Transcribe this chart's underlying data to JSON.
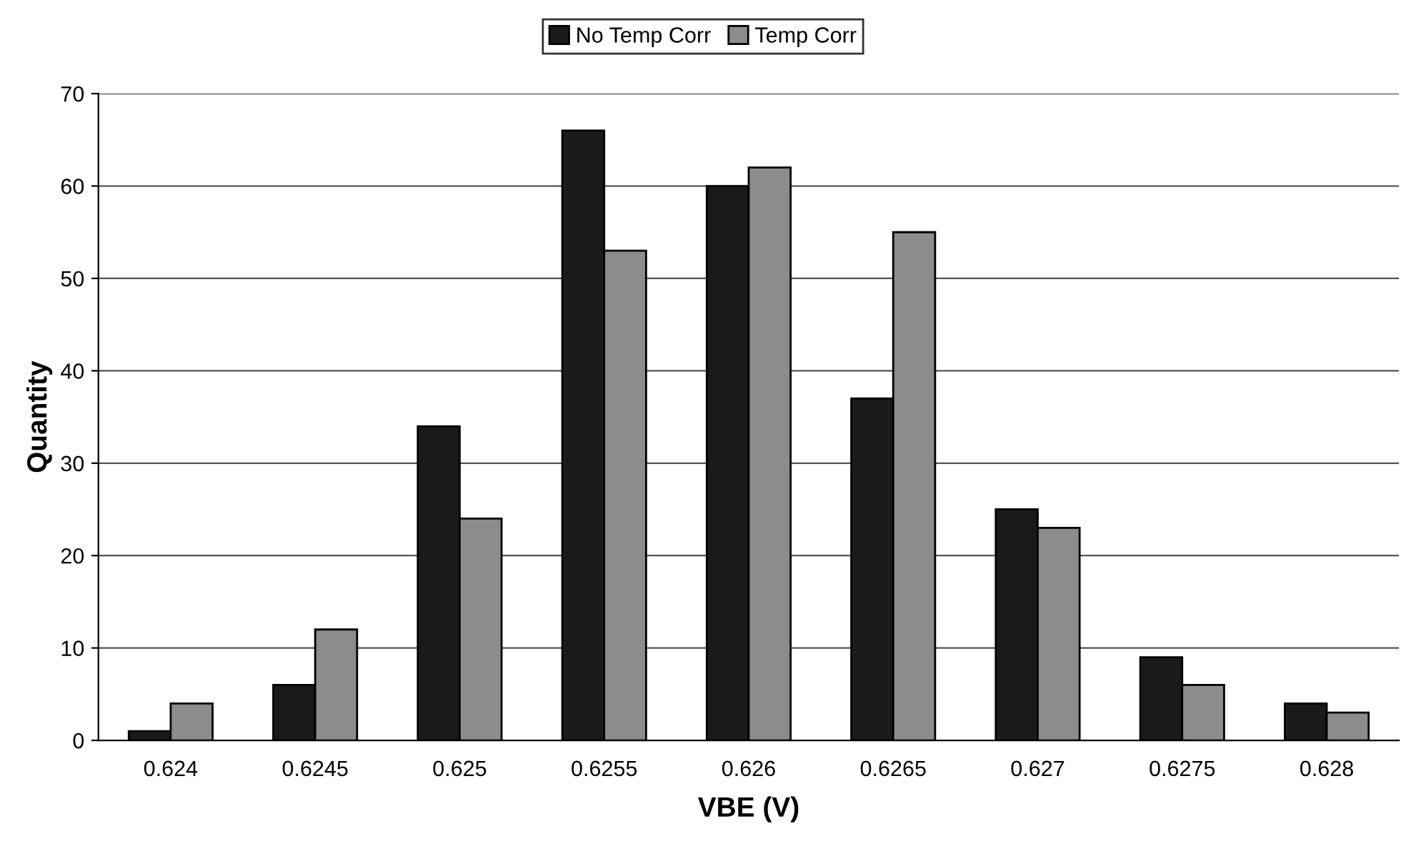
{
  "chart_data": {
    "type": "bar",
    "xlabel": "VBE (V)",
    "ylabel": "Quantity",
    "categories": [
      "0.624",
      "0.6245",
      "0.625",
      "0.6255",
      "0.626",
      "0.6265",
      "0.627",
      "0.6275",
      "0.628"
    ],
    "series": [
      {
        "name": "No Temp Corr",
        "color": "#1a1a1a",
        "values": [
          1,
          6,
          34,
          66,
          60,
          37,
          25,
          9,
          4
        ]
      },
      {
        "name": "Temp Corr",
        "color": "#8c8c8c",
        "values": [
          4,
          12,
          24,
          53,
          62,
          55,
          23,
          6,
          3
        ]
      }
    ],
    "ylim": [
      0,
      70
    ],
    "yticks": [
      0,
      10,
      20,
      30,
      40,
      50,
      60,
      70
    ],
    "grid": "y",
    "legend": "top"
  }
}
